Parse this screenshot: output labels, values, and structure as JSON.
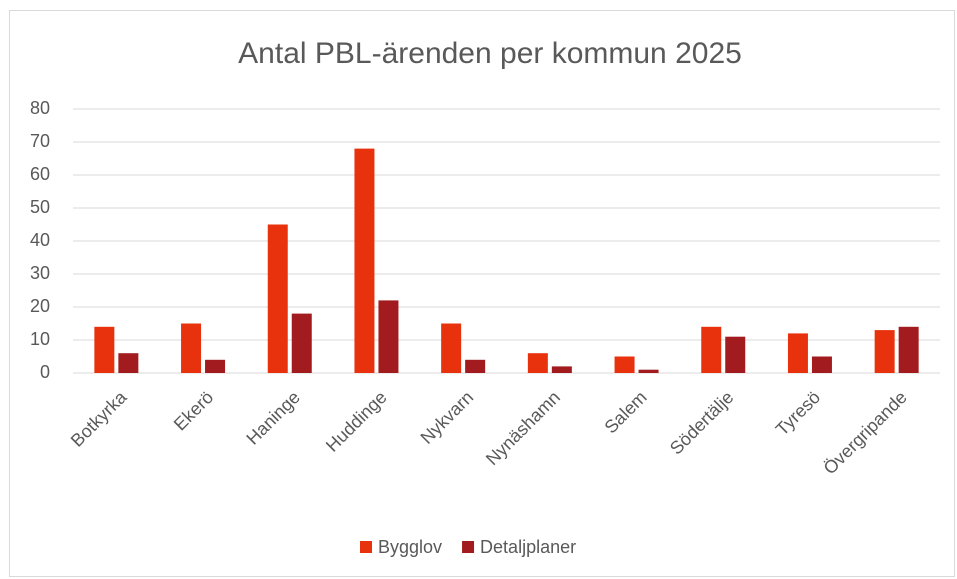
{
  "chart_data": {
    "type": "bar",
    "title": "Antal PBL-ärenden per kommun 2025",
    "categories": [
      "Botkyrka",
      "Ekerö",
      "Haninge",
      "Huddinge",
      "Nykvarn",
      "Nynäshamn",
      "Salem",
      "Södertälje",
      "Tyresö",
      "Övergripande"
    ],
    "series": [
      {
        "name": "Bygglov",
        "color": "#e8320e",
        "values": [
          14,
          15,
          45,
          68,
          15,
          6,
          5,
          14,
          12,
          13
        ]
      },
      {
        "name": "Detaljplaner",
        "color": "#a21b1e",
        "values": [
          6,
          4,
          18,
          22,
          4,
          2,
          1,
          11,
          5,
          14
        ]
      }
    ],
    "ylim": [
      0,
      80
    ],
    "yticks": [
      0,
      10,
      20,
      30,
      40,
      50,
      60,
      70,
      80
    ],
    "grid": true,
    "legend": "bottom"
  }
}
